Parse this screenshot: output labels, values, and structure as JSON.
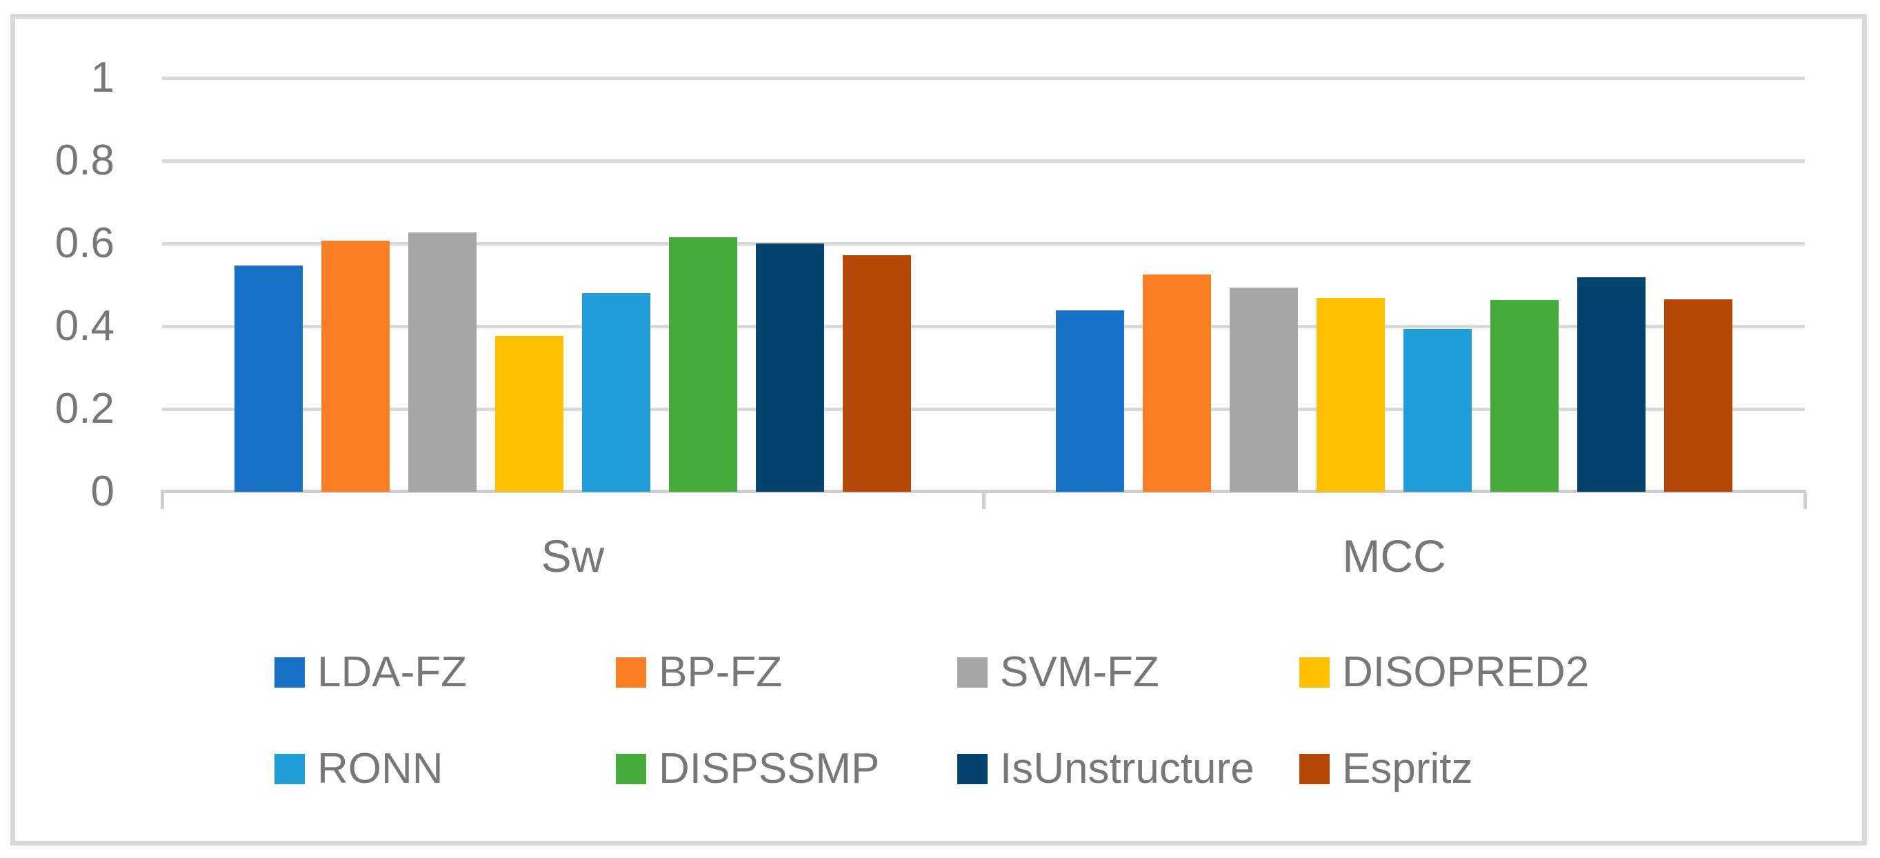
{
  "chart_data": {
    "type": "bar",
    "categories": [
      "Sw",
      "MCC"
    ],
    "series": [
      {
        "name": "LDA-FZ",
        "color": "#1772C7",
        "values": [
          0.547,
          0.438
        ]
      },
      {
        "name": "BP-FZ",
        "color": "#FB7D24",
        "values": [
          0.607,
          0.525
        ]
      },
      {
        "name": "SVM-FZ",
        "color": "#A6A6A6",
        "values": [
          0.627,
          0.494
        ]
      },
      {
        "name": "DISOPRED2",
        "color": "#FFC000",
        "values": [
          0.377,
          0.468
        ]
      },
      {
        "name": "RONN",
        "color": "#219ED8",
        "values": [
          0.48,
          0.394
        ]
      },
      {
        "name": "DISPSSMP",
        "color": "#44AC3B",
        "values": [
          0.615,
          0.463
        ]
      },
      {
        "name": "IsUnstructure",
        "color": "#05436F",
        "values": [
          0.6,
          0.518
        ]
      },
      {
        "name": "Espritz",
        "color": "#B44705",
        "values": [
          0.572,
          0.465
        ]
      }
    ],
    "yticks": [
      {
        "label": "0",
        "value": 0
      },
      {
        "label": "0.2",
        "value": 0.2
      },
      {
        "label": "0.4",
        "value": 0.4
      },
      {
        "label": "0.6",
        "value": 0.6
      },
      {
        "label": "0.8",
        "value": 0.8
      },
      {
        "label": "1",
        "value": 1
      }
    ],
    "ylim": [
      0,
      1
    ],
    "grid": true,
    "legend_position": "bottom-two-rows"
  },
  "colors": {
    "background": "#FFFFFF",
    "border": "#D9D9D9",
    "gridline": "#D9D9D9",
    "axis_line": "#D0CECE",
    "text": "#777777"
  }
}
